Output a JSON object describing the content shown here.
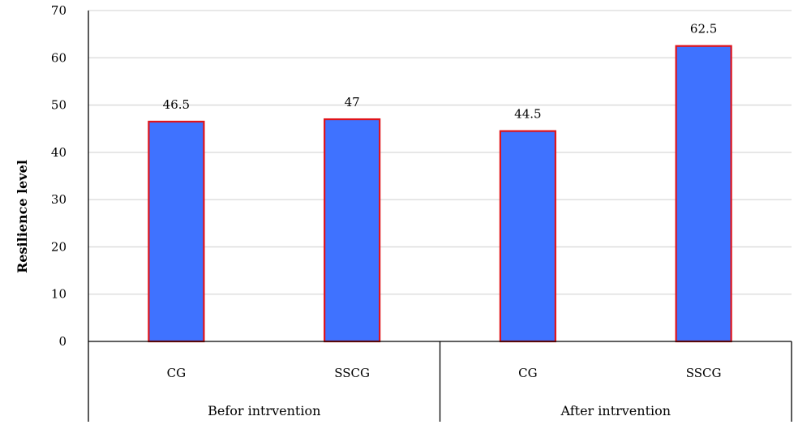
{
  "chart_data": {
    "type": "bar",
    "ylabel": "Resilience level",
    "ylim": [
      0,
      70
    ],
    "yticks": [
      0,
      10,
      20,
      30,
      40,
      50,
      60,
      70
    ],
    "grid": true,
    "groups": [
      {
        "label": "Befor intrvention",
        "categories": [
          "CG",
          "SSCG"
        ],
        "values": [
          46.5,
          47
        ]
      },
      {
        "label": "After intrvention",
        "categories": [
          "CG",
          "SSCG"
        ],
        "values": [
          44.5,
          62.5
        ]
      }
    ],
    "bar_fill": "#3f72ff",
    "bar_stroke": "#e0141b"
  }
}
